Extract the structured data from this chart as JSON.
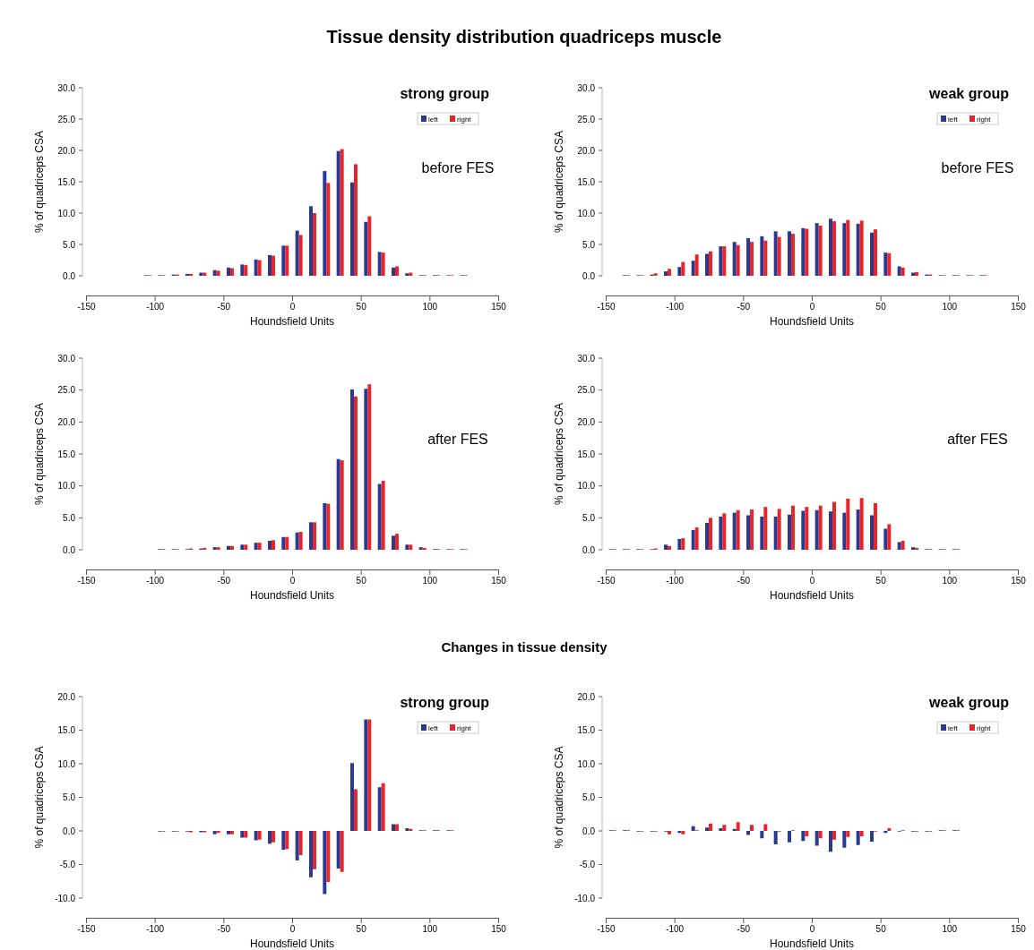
{
  "chart_data": [
    {
      "type": "bar",
      "title": "Tissue density distribution quadriceps muscle",
      "subtitle": "strong group",
      "annotations": [
        "before FES"
      ],
      "xlabel": "Houndsfield Units",
      "ylabel": "% of quadriceps CSA",
      "legend": "top right",
      "x": [
        -105,
        -95,
        -85,
        -75,
        -65,
        -55,
        -45,
        -35,
        -25,
        -15,
        -5,
        5,
        15,
        25,
        35,
        45,
        55,
        65,
        75,
        85,
        95,
        105,
        115,
        125
      ],
      "series": [
        {
          "name": "left",
          "color": "#2b3a91",
          "values": [
            0.1,
            0.1,
            0.2,
            0.3,
            0.5,
            0.9,
            1.3,
            1.8,
            2.6,
            3.3,
            4.8,
            7.2,
            11.1,
            16.7,
            19.9,
            14.9,
            8.6,
            3.8,
            1.3,
            0.4,
            0.1,
            0.1,
            0.1,
            0.1
          ]
        },
        {
          "name": "right",
          "color": "#e8252b",
          "values": [
            0.1,
            0.1,
            0.2,
            0.3,
            0.5,
            0.8,
            1.2,
            1.7,
            2.5,
            3.2,
            4.8,
            6.5,
            10.0,
            14.8,
            20.2,
            17.8,
            9.5,
            3.7,
            1.5,
            0.5,
            0.1,
            0.1,
            0.1,
            0.1
          ]
        }
      ],
      "xlim": [
        -150,
        150
      ],
      "xticks": [
        -150,
        -100,
        -50,
        0,
        50,
        100,
        150
      ],
      "ylim": [
        0,
        30
      ],
      "yticks": [
        {
          "value": 0,
          "label": "0.0"
        },
        {
          "value": 5,
          "label": "5.0"
        },
        {
          "value": 10,
          "label": "10.0"
        },
        {
          "value": 15,
          "label": "15.0"
        },
        {
          "value": 20,
          "label": "20.0"
        },
        {
          "value": 25,
          "label": "25.0"
        },
        {
          "value": 30,
          "label": "30.0"
        }
      ]
    },
    {
      "type": "bar",
      "subtitle": "weak group",
      "annotations": [
        "before FES"
      ],
      "xlabel": "Houndsfield Units",
      "ylabel": "% of quadriceps CSA",
      "legend": "top right",
      "x": [
        -135,
        -125,
        -115,
        -105,
        -95,
        -85,
        -75,
        -65,
        -55,
        -45,
        -35,
        -25,
        -15,
        -5,
        5,
        15,
        25,
        35,
        45,
        55,
        65,
        75,
        85,
        95,
        105,
        115,
        125
      ],
      "series": [
        {
          "name": "left",
          "color": "#2b3a91",
          "values": [
            0.1,
            0.1,
            0.2,
            0.7,
            1.4,
            2.4,
            3.5,
            4.7,
            5.4,
            6.0,
            6.3,
            7.1,
            7.1,
            7.6,
            8.4,
            9.1,
            8.4,
            8.3,
            6.9,
            3.7,
            1.5,
            0.5,
            0.2,
            0.1,
            0.1,
            0.1,
            0.1
          ]
        },
        {
          "name": "right",
          "color": "#e8252b",
          "values": [
            0.1,
            0.1,
            0.4,
            1.1,
            2.2,
            3.4,
            3.9,
            4.7,
            4.9,
            5.4,
            5.6,
            6.2,
            6.7,
            7.5,
            8.0,
            8.7,
            8.9,
            8.8,
            7.4,
            3.6,
            1.3,
            0.6,
            0.2,
            0.1,
            0.1,
            0.1,
            0.1
          ]
        }
      ],
      "xlim": [
        -150,
        150
      ],
      "xticks": [
        -150,
        -100,
        -50,
        0,
        50,
        100,
        150
      ],
      "ylim": [
        0,
        30
      ],
      "yticks": [
        {
          "value": 0,
          "label": "0.0"
        },
        {
          "value": 5,
          "label": "5.0"
        },
        {
          "value": 10,
          "label": "10.0"
        },
        {
          "value": 15,
          "label": "15.0"
        },
        {
          "value": 20,
          "label": "20.0"
        },
        {
          "value": 25,
          "label": "25.0"
        },
        {
          "value": 30,
          "label": "30.0"
        }
      ]
    },
    {
      "type": "bar",
      "annotations": [
        "after FES"
      ],
      "xlabel": "Houndsfield Units",
      "ylabel": "% of quadriceps CSA",
      "x": [
        -95,
        -85,
        -75,
        -65,
        -55,
        -45,
        -35,
        -25,
        -15,
        -5,
        5,
        15,
        25,
        35,
        45,
        55,
        65,
        75,
        85,
        95,
        105,
        115,
        125
      ],
      "series": [
        {
          "color": "#2b3a91",
          "values": [
            0.1,
            0.1,
            0.1,
            0.2,
            0.4,
            0.6,
            0.8,
            1.1,
            1.4,
            2.0,
            2.7,
            4.3,
            7.3,
            14.2,
            25.1,
            25.2,
            10.3,
            2.2,
            0.8,
            0.4,
            0.1,
            0.1,
            0.1
          ]
        },
        {
          "color": "#e8252b",
          "values": [
            0.1,
            0.1,
            0.2,
            0.3,
            0.4,
            0.6,
            0.8,
            1.1,
            1.5,
            2.0,
            2.8,
            4.3,
            7.2,
            14.0,
            24.0,
            25.9,
            10.8,
            2.5,
            0.8,
            0.3,
            0.1,
            0.1,
            0.1
          ]
        }
      ],
      "xlim": [
        -150,
        150
      ],
      "xticks": [
        -150,
        -100,
        -50,
        0,
        50,
        100,
        150
      ],
      "ylim": [
        0,
        30
      ],
      "yticks": [
        {
          "value": 0,
          "label": "0.0"
        },
        {
          "value": 5,
          "label": "5.0"
        },
        {
          "value": 10,
          "label": "10.0"
        },
        {
          "value": 15,
          "label": "15.0"
        },
        {
          "value": 20,
          "label": "20.0"
        },
        {
          "value": 25,
          "label": "25.0"
        },
        {
          "value": 30,
          "label": "30.0"
        }
      ]
    },
    {
      "type": "bar",
      "annotations": [
        "after FES"
      ],
      "xlabel": "Houndsfield Units",
      "ylabel": "% of quadriceps CSA",
      "x": [
        -145,
        -135,
        -125,
        -115,
        -105,
        -95,
        -85,
        -75,
        -65,
        -55,
        -45,
        -35,
        -25,
        -15,
        -5,
        5,
        15,
        25,
        35,
        45,
        55,
        65,
        75,
        85,
        95,
        105
      ],
      "series": [
        {
          "color": "#2b3a91",
          "values": [
            0.1,
            0.1,
            0.1,
            0.1,
            0.8,
            1.7,
            3.1,
            4.2,
            5.2,
            5.8,
            5.4,
            5.2,
            5.2,
            5.5,
            6.1,
            6.2,
            6.0,
            5.8,
            6.3,
            5.4,
            3.3,
            1.2,
            0.4,
            0.1,
            0.1,
            0.1
          ]
        },
        {
          "color": "#e8252b",
          "values": [
            0.1,
            0.1,
            0.1,
            0.2,
            0.6,
            1.8,
            3.5,
            5.0,
            5.7,
            6.2,
            6.3,
            6.7,
            6.4,
            6.9,
            6.7,
            6.9,
            7.5,
            8.0,
            8.1,
            7.3,
            4.0,
            1.4,
            0.3,
            0.1,
            0.1,
            0.1
          ]
        }
      ],
      "xlim": [
        -150,
        150
      ],
      "xticks": [
        -150,
        -100,
        -50,
        0,
        50,
        100,
        150
      ],
      "ylim": [
        0,
        30
      ],
      "yticks": [
        {
          "value": 0,
          "label": "0.0"
        },
        {
          "value": 5,
          "label": "5.0"
        },
        {
          "value": 10,
          "label": "10.0"
        },
        {
          "value": 15,
          "label": "15.0"
        },
        {
          "value": 20,
          "label": "20.0"
        },
        {
          "value": 25,
          "label": "25.0"
        },
        {
          "value": 30,
          "label": "30.0"
        }
      ]
    },
    {
      "type": "bar",
      "title": "Changes in tissue density",
      "subtitle": "strong group",
      "xlabel": "Houndsfield Units",
      "ylabel": "% of quadriceps CSA",
      "legend": "top right",
      "x": [
        -95,
        -85,
        -75,
        -65,
        -55,
        -45,
        -35,
        -25,
        -15,
        -5,
        5,
        15,
        25,
        35,
        45,
        55,
        65,
        75,
        85,
        95,
        105,
        115
      ],
      "series": [
        {
          "name": "left",
          "color": "#2b3a91",
          "values": [
            -0.1,
            -0.1,
            -0.1,
            -0.2,
            -0.5,
            -0.5,
            -1.0,
            -1.4,
            -1.9,
            -2.8,
            -4.4,
            -6.9,
            -9.4,
            -5.6,
            10.1,
            16.6,
            6.5,
            1.0,
            0.4,
            0.1,
            0.1,
            0.1
          ]
        },
        {
          "name": "right",
          "color": "#e8252b",
          "values": [
            -0.1,
            -0.1,
            -0.2,
            -0.2,
            -0.3,
            -0.5,
            -1.0,
            -1.3,
            -1.7,
            -2.7,
            -3.6,
            -5.7,
            -7.6,
            -6.1,
            6.2,
            16.6,
            7.1,
            1.0,
            0.3,
            0.1,
            0.1,
            0.1
          ]
        }
      ],
      "xlim": [
        -150,
        150
      ],
      "xticks": [
        -150,
        -100,
        -50,
        0,
        50,
        100,
        150
      ],
      "ylim": [
        -10,
        20
      ],
      "yticks": [
        {
          "value": -10,
          "label": "-10.0"
        },
        {
          "value": -5,
          "label": "-5.0"
        },
        {
          "value": 0,
          "label": "0.0"
        },
        {
          "value": 5,
          "label": "5.0"
        },
        {
          "value": 10,
          "label": "10.0"
        },
        {
          "value": 15,
          "label": "15.0"
        },
        {
          "value": 20,
          "label": "20.0"
        }
      ]
    },
    {
      "type": "bar",
      "subtitle": "weak group",
      "xlabel": "Houndsfield Units",
      "ylabel": "% of quadriceps CSA",
      "legend": "top right",
      "x": [
        -145,
        -135,
        -125,
        -115,
        -105,
        -95,
        -85,
        -75,
        -65,
        -55,
        -45,
        -35,
        -25,
        -15,
        -5,
        5,
        15,
        25,
        35,
        45,
        55,
        65,
        75,
        85,
        95,
        105
      ],
      "series": [
        {
          "name": "left",
          "color": "#2b3a91",
          "values": [
            0.1,
            0.1,
            -0.1,
            -0.1,
            -0.1,
            -0.3,
            0.7,
            0.5,
            0.4,
            0.3,
            -0.6,
            -1.1,
            -2.0,
            -1.7,
            -1.5,
            -2.2,
            -3.1,
            -2.5,
            -2.1,
            -1.6,
            -0.3,
            -0.1,
            -0.1,
            -0.1,
            0.1,
            0.1
          ]
        },
        {
          "name": "right",
          "color": "#e8252b",
          "values": [
            0.1,
            0.1,
            -0.1,
            -0.1,
            -0.5,
            -0.5,
            0.1,
            1.1,
            0.9,
            1.3,
            0.9,
            1.0,
            -0.1,
            0.1,
            -0.8,
            -1.1,
            -1.3,
            -0.9,
            -0.8,
            -0.1,
            0.4,
            0.1,
            -0.1,
            -0.1,
            0.1,
            0.1
          ]
        }
      ],
      "xlim": [
        -150,
        150
      ],
      "xticks": [
        -150,
        -100,
        -50,
        0,
        50,
        100,
        150
      ],
      "ylim": [
        -10,
        20
      ],
      "yticks": [
        {
          "value": -10,
          "label": "-10.0"
        },
        {
          "value": -5,
          "label": "-5.0"
        },
        {
          "value": 0,
          "label": "0.0"
        },
        {
          "value": 5,
          "label": "5.0"
        },
        {
          "value": 10,
          "label": "10.0"
        },
        {
          "value": 15,
          "label": "15.0"
        },
        {
          "value": 20,
          "label": "20.0"
        }
      ]
    }
  ]
}
